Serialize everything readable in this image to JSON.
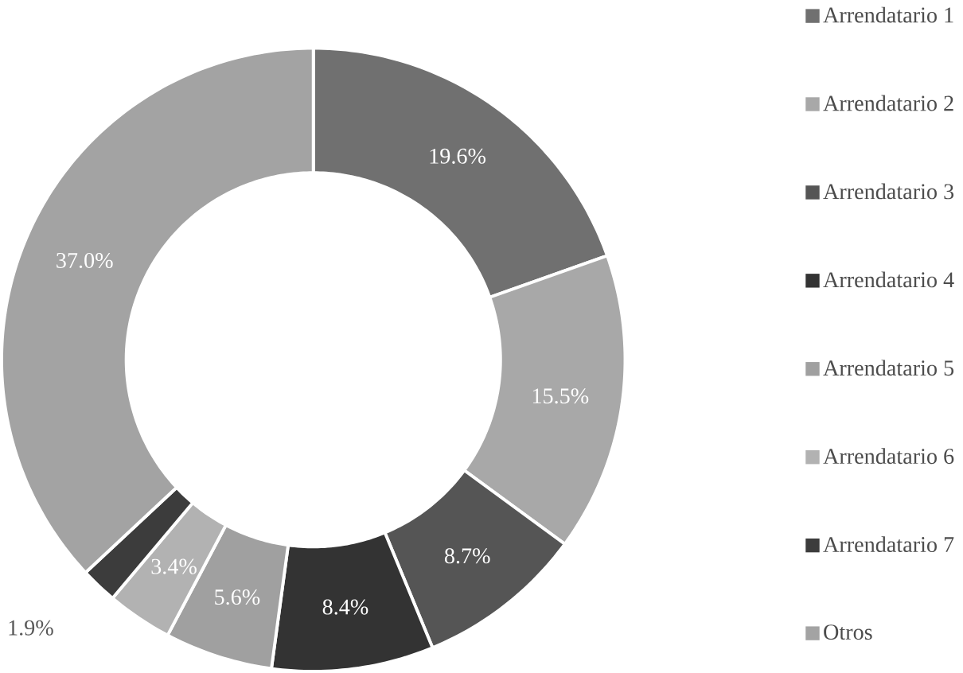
{
  "chart_data": {
    "type": "donut",
    "categories": [
      "Arrendatario 1",
      "Arrendatario 2",
      "Arrendatario 3",
      "Arrendatario 4",
      "Arrendatario 5",
      "Arrendatario 6",
      "Arrendatario 7",
      "Otros"
    ],
    "values": [
      19.6,
      15.5,
      8.7,
      8.4,
      5.6,
      3.4,
      1.9,
      37.0
    ],
    "value_labels": [
      "19.6%",
      "15.5%",
      "8.7%",
      "8.4%",
      "5.6%",
      "3.4%",
      "1.9%",
      "37.0%"
    ],
    "colors": [
      "#707070",
      "#a8a8a8",
      "#555555",
      "#333333",
      "#a0a0a0",
      "#b2b2b2",
      "#3c3c3c",
      "#a3a3a3"
    ],
    "legend": "right"
  }
}
